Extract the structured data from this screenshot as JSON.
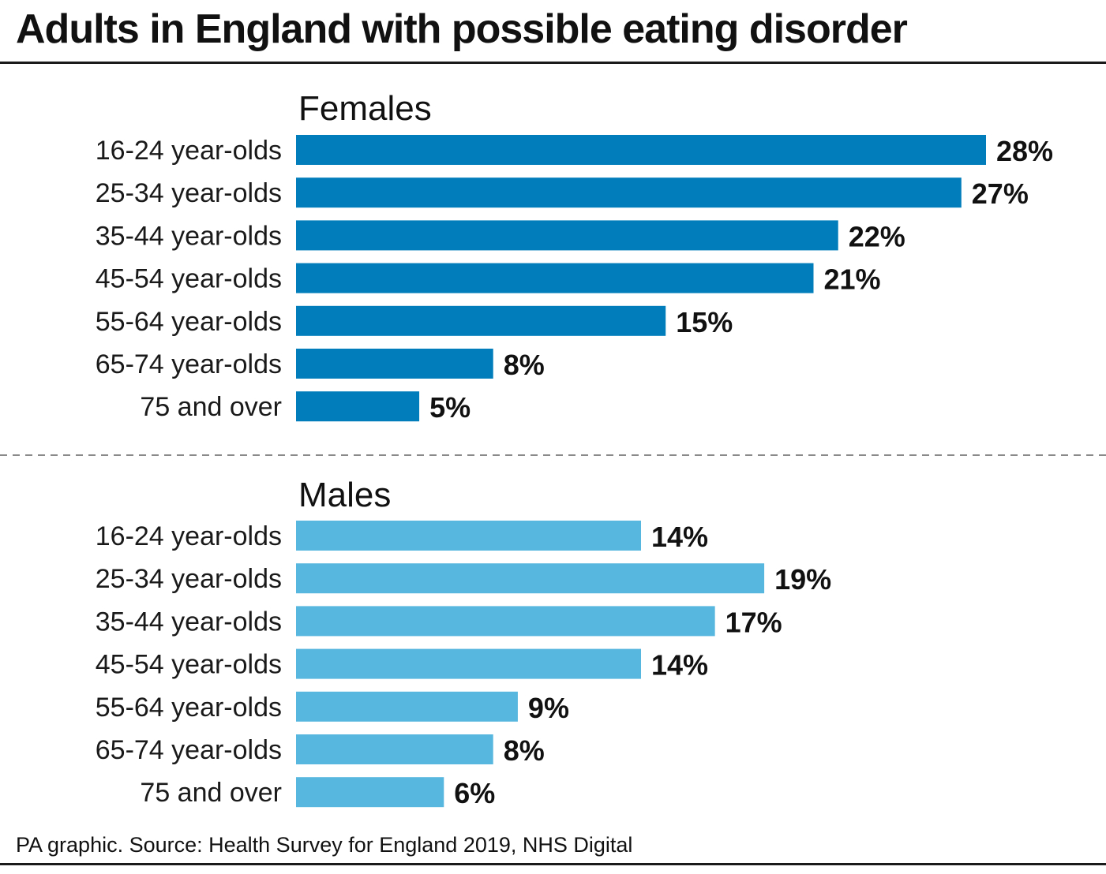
{
  "title": "Adults in England with possible eating disorder",
  "source": "PA graphic. Source: Health Survey for England 2019, NHS Digital",
  "chart_data": [
    {
      "type": "bar",
      "orientation": "horizontal",
      "title": "Females",
      "color": "#007DBA",
      "categories": [
        "16-24 year-olds",
        "25-34 year-olds",
        "35-44 year-olds",
        "45-54 year-olds",
        "55-64 year-olds",
        "65-74 year-olds",
        "75 and over"
      ],
      "values": [
        28,
        27,
        22,
        21,
        15,
        8,
        5
      ],
      "value_labels": [
        "28%",
        "27%",
        "22%",
        "21%",
        "15%",
        "8%",
        "5%"
      ],
      "xlim": [
        0,
        28
      ],
      "grid": false
    },
    {
      "type": "bar",
      "orientation": "horizontal",
      "title": "Males",
      "color": "#58B7DF",
      "categories": [
        "16-24 year-olds",
        "25-34 year-olds",
        "35-44 year-olds",
        "45-54 year-olds",
        "55-64 year-olds",
        "65-74 year-olds",
        "75 and over"
      ],
      "values": [
        14,
        19,
        17,
        14,
        9,
        8,
        6
      ],
      "value_labels": [
        "14%",
        "19%",
        "17%",
        "14%",
        "9%",
        "8%",
        "6%"
      ],
      "xlim": [
        0,
        28
      ],
      "grid": false
    }
  ]
}
